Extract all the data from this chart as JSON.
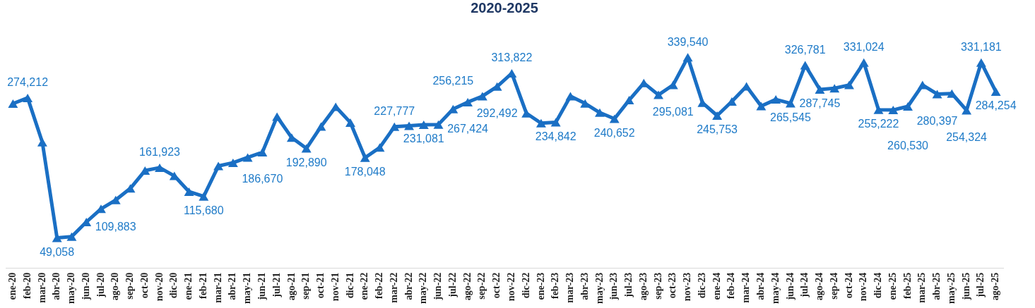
{
  "chart_data": {
    "type": "line",
    "title": "2020-2025",
    "marker": "triangle",
    "line_style": "solid",
    "legend": false,
    "grid": false,
    "tick_labels": "x",
    "categories": [
      "ene-20",
      "feb-20",
      "mar-20",
      "abr-20",
      "may-20",
      "jun-20",
      "jul-20",
      "ago-20",
      "sep-20",
      "oct-20",
      "nov-20",
      "dic-20",
      "ene-21",
      "feb-21",
      "mar-21",
      "abr-21",
      "may-21",
      "jun-21",
      "jul-21",
      "ago-21",
      "sep-21",
      "oct-21",
      "nov-21",
      "dic-21",
      "ene-22",
      "feb-22",
      "mar-22",
      "abr-22",
      "may-22",
      "jun-22",
      "jul-22",
      "ago-22",
      "sep-22",
      "oct-22",
      "nov-22",
      "dic-22",
      "ene-23",
      "feb-23",
      "mar-23",
      "abr-23",
      "may-23",
      "jun-23",
      "jul-23",
      "ago-23",
      "sep-23",
      "oct-23",
      "nov-23",
      "dic-23",
      "ene-24",
      "feb-24",
      "mar-24",
      "abr-24",
      "may-24",
      "jun-24",
      "jul-24",
      "ago-24",
      "sep-24",
      "oct-24",
      "nov-24",
      "dic-24",
      "ene-25",
      "feb-25",
      "mar-25",
      "abr-25",
      "may-25",
      "jun-25",
      "jul-25",
      "ago-25"
    ],
    "series": [
      {
        "color": "#1a6fc4",
        "values": [
          265000,
          274212,
          203000,
          49058,
          51000,
          74500,
          95700,
          109883,
          128600,
          157200,
          161923,
          148700,
          123300,
          115680,
          164600,
          169900,
          178400,
          186670,
          244100,
          210200,
          192890,
          228200,
          260000,
          234500,
          178048,
          194300,
          227777,
          229300,
          231081,
          231400,
          256215,
          267424,
          277000,
          292492,
          313822,
          249400,
          233500,
          234842,
          277000,
          265300,
          250500,
          240652,
          270600,
          298100,
          279100,
          295081,
          339540,
          266400,
          245753,
          268500,
          292900,
          261100,
          271700,
          265545,
          326781,
          287745,
          289700,
          295000,
          331024,
          255222,
          254700,
          260530,
          295000,
          280397,
          281200,
          254324,
          331181,
          284254
        ],
        "value_labels": [
          null,
          "274,212",
          null,
          "49,058",
          null,
          null,
          null,
          "109,883",
          null,
          null,
          "161,923",
          null,
          null,
          "115,680",
          null,
          null,
          null,
          "186,670",
          null,
          null,
          "192,890",
          null,
          null,
          null,
          "178,048",
          null,
          "227,777",
          null,
          "231,081",
          null,
          "256,215",
          "267,424",
          null,
          "292,492",
          "313,822",
          null,
          null,
          "234,842",
          null,
          null,
          null,
          "240,652",
          null,
          null,
          null,
          "295,081",
          "339,540",
          null,
          "245,753",
          null,
          null,
          null,
          null,
          "265,545",
          "326,781",
          "287,745",
          null,
          null,
          "331,024",
          "255,222",
          null,
          "260,530",
          null,
          "280,397",
          null,
          "254,324",
          "331,181",
          "284,254"
        ]
      }
    ]
  }
}
